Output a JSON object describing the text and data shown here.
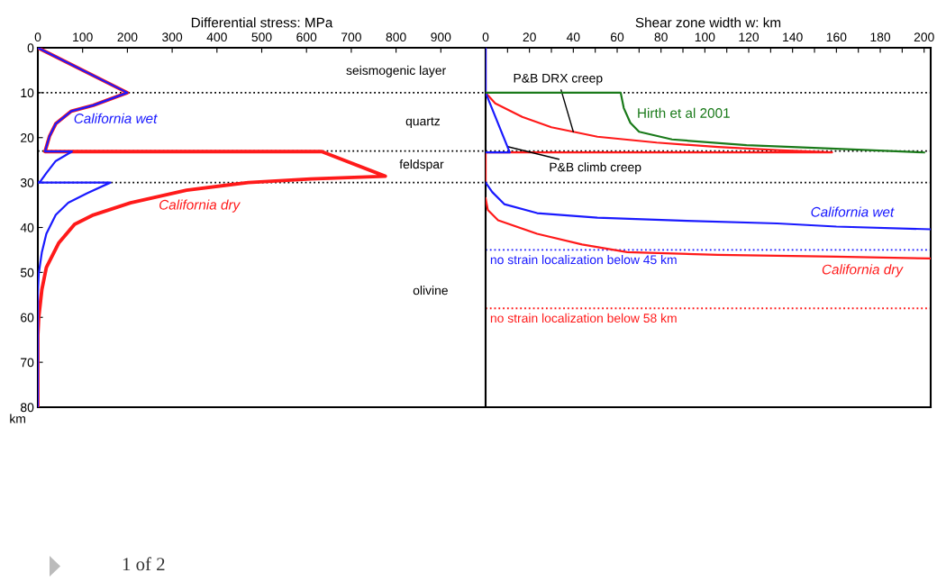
{
  "chart_data": [
    {
      "type": "line",
      "xlabel": "Differential stress: MPa",
      "ylabel": "km",
      "xlim": [
        0,
        1000
      ],
      "xticks": [
        0,
        100,
        200,
        300,
        400,
        500,
        600,
        700,
        800,
        900
      ],
      "ylim": [
        80,
        0
      ],
      "yticks": [
        0,
        10,
        20,
        30,
        40,
        50,
        60,
        70,
        80
      ],
      "grid": false,
      "legend": false,
      "series": [
        {
          "name": "California dry",
          "color": "#ff1a1a",
          "x": [
            0,
            200,
            124,
            75,
            40,
            26,
            16,
            634,
            776,
            609,
            470,
            332,
            207,
            124,
            82,
            47,
            19,
            9,
            2,
            0,
            0
          ],
          "values": [
            0,
            10,
            12.8,
            14.1,
            16.9,
            19.7,
            23.1,
            23.1,
            28.6,
            29.2,
            30,
            31.7,
            34.5,
            37.2,
            39.3,
            43.4,
            48.9,
            53.8,
            60,
            64,
            80
          ]
        },
        {
          "name": "California wet",
          "color": "#1a1aff",
          "x": [
            0,
            200,
            124,
            75,
            40,
            26,
            16,
            76,
            40,
            19,
            6,
            0,
            162,
            110,
            68,
            40,
            19,
            9,
            2,
            0,
            0
          ],
          "values": [
            0,
            10,
            12.8,
            14.1,
            16.9,
            19.7,
            23.1,
            23.1,
            25.2,
            27.9,
            29.7,
            30,
            30,
            32.4,
            34.5,
            37.2,
            41.4,
            45.5,
            50.3,
            54.5,
            80
          ]
        }
      ],
      "ref_lines": [
        {
          "axis": "y",
          "value": 10,
          "color": "#000000",
          "line_style": "dotted"
        },
        {
          "axis": "y",
          "value": 23,
          "color": "#000000",
          "line_style": "dotted"
        },
        {
          "axis": "y",
          "value": 30,
          "color": "#000000",
          "line_style": "dotted"
        }
      ],
      "annotations": [
        "seismogenic layer",
        "quartz",
        "feldspar",
        "olivine",
        "1 of 2"
      ]
    },
    {
      "type": "line",
      "xlabel": "Shear zone width w: km",
      "xlim": [
        0,
        203
      ],
      "xticks": [
        0,
        {
          "value": 10,
          "label": null
        },
        20,
        {
          "value": 30,
          "label": null
        },
        40,
        {
          "value": 50,
          "label": null
        },
        60,
        {
          "value": 70,
          "label": null
        },
        80,
        {
          "value": 90,
          "label": null
        },
        100,
        {
          "value": 110,
          "label": null
        },
        120,
        {
          "value": 130,
          "label": null
        },
        140,
        {
          "value": 150,
          "label": null
        },
        160,
        {
          "value": 170,
          "label": null
        },
        180,
        {
          "value": 190,
          "label": null
        },
        200
      ],
      "ylim": [
        80,
        0
      ],
      "tick_labels": "x",
      "grid": false,
      "legend": false,
      "series": [
        {
          "color": "#ff1a1a",
          "x": [
            0,
            0,
            4.4,
            16.7,
            30,
            51,
            78,
            106,
            133,
            158,
            0,
            0
          ],
          "values": [
            0,
            10,
            12.4,
            15.4,
            17.7,
            19.8,
            21.1,
            22.1,
            22.8,
            23.3,
            23.3,
            30
          ]
        },
        {
          "color": "#1a1aff",
          "x": [
            0,
            0,
            11,
            0
          ],
          "values": [
            0,
            10,
            23.3,
            23.3
          ]
        },
        {
          "name": "Hirth et al 2001",
          "color": "#1a7a1a",
          "x": [
            0,
            61.6,
            63,
            66,
            70,
            85,
            119,
            160,
            200
          ],
          "values": [
            10,
            10,
            13.4,
            16.7,
            18.7,
            20.4,
            21.7,
            22.5,
            23.3
          ]
        },
        {
          "name": "California wet",
          "color": "#1a1aff",
          "x": [
            0,
            3,
            8.5,
            23.5,
            51,
            92,
            133,
            160,
            203
          ],
          "values": [
            30,
            32.1,
            34.8,
            36.8,
            37.8,
            38.5,
            39.1,
            39.8,
            40.4
          ]
        },
        {
          "name": "California dry",
          "color": "#ff1a1a",
          "x": [
            0,
            1,
            5.7,
            23.5,
            44,
            64.6,
            106,
            160,
            203
          ],
          "values": [
            33.5,
            36.1,
            38.4,
            41.4,
            43.8,
            45.5,
            46.1,
            46.5,
            46.9
          ]
        }
      ],
      "ref_lines": [
        {
          "axis": "y",
          "value": 10,
          "color": "#000000",
          "line_style": "dotted"
        },
        {
          "axis": "y",
          "value": 23,
          "color": "#000000",
          "line_style": "dotted"
        },
        {
          "axis": "y",
          "value": 30,
          "color": "#000000",
          "line_style": "dotted"
        },
        {
          "axis": "y",
          "value": 45,
          "color": "#1a1aff",
          "line_style": "dotted",
          "label": "no strain localization below 45 km"
        },
        {
          "axis": "y",
          "value": 58,
          "color": "#ff1a1a",
          "line_style": "dotted",
          "label": "no strain localization below 58 km"
        }
      ],
      "annotations": [
        {
          "text": "P&B DRX creep",
          "x": 40,
          "y": 18.7
        },
        {
          "text": "P&B climb creep",
          "x": 10,
          "y": 22
        }
      ]
    }
  ]
}
